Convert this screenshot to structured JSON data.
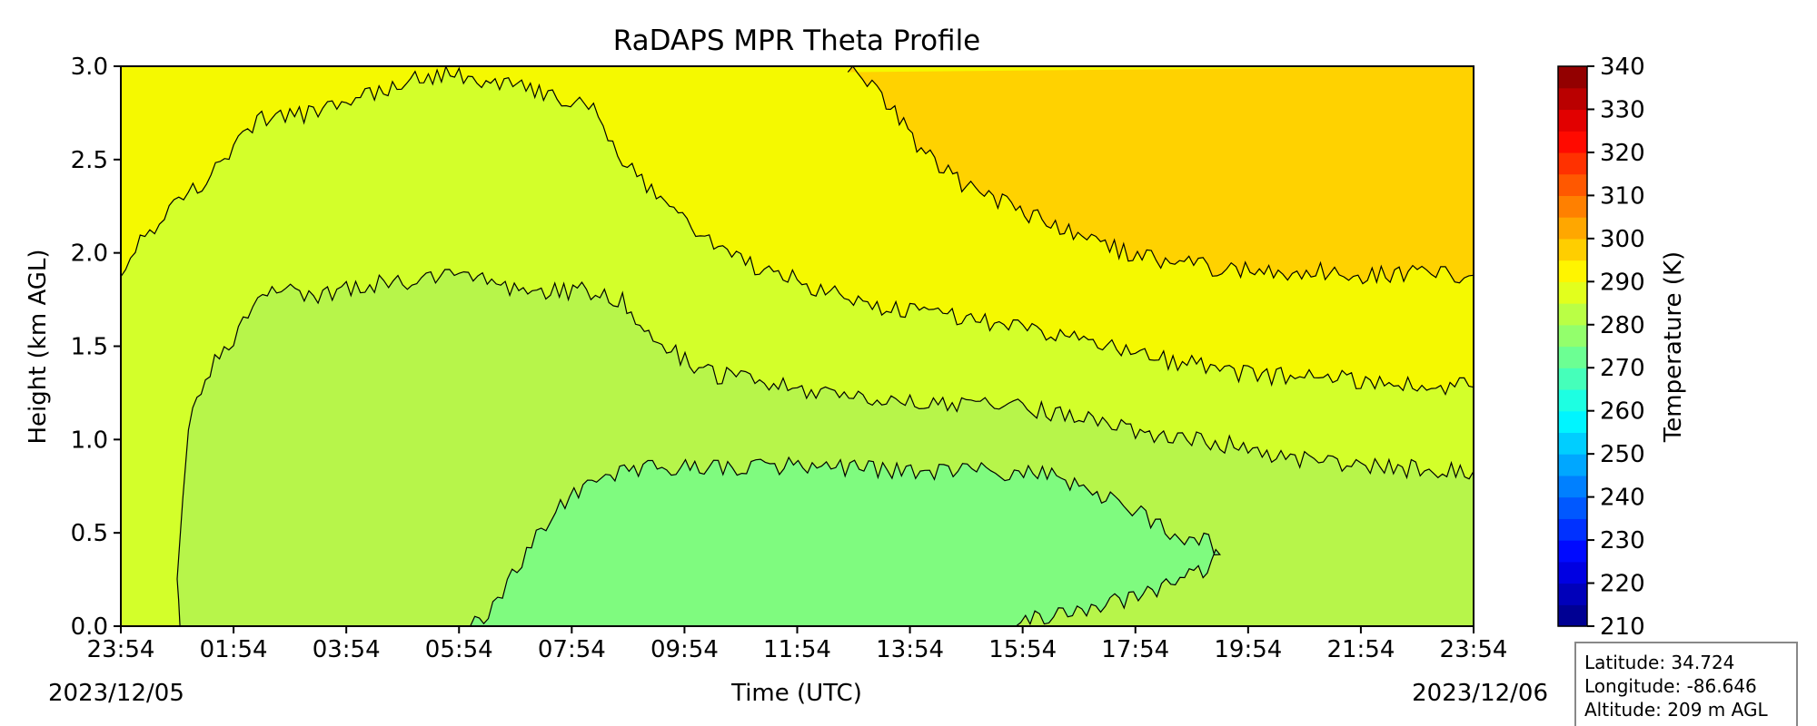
{
  "chart_data": {
    "type": "heatmap",
    "subtype": "filled-contour",
    "title": "RaDAPS MPR Theta Profile",
    "xlabel": "Time (UTC)",
    "ylabel": "Height (km AGL)",
    "x_tick_labels": [
      "23:54",
      "01:54",
      "03:54",
      "05:54",
      "07:54",
      "09:54",
      "11:54",
      "13:54",
      "15:54",
      "17:54",
      "19:54",
      "21:54",
      "23:54"
    ],
    "x_start_date": "2023/12/05",
    "x_end_date": "2023/12/06",
    "xlim_hours": [
      0,
      24
    ],
    "ylim": [
      0.0,
      3.0
    ],
    "y_ticks": [
      "0.0",
      "0.5",
      "1.0",
      "1.5",
      "2.0",
      "2.5",
      "3.0"
    ],
    "colorbar": {
      "label": "Temperature (K)",
      "range": [
        210,
        340
      ],
      "ticks": [
        "210",
        "220",
        "230",
        "240",
        "250",
        "260",
        "270",
        "280",
        "290",
        "300",
        "310",
        "320",
        "330",
        "340"
      ],
      "colormap": "jet",
      "levels": 26
    },
    "contour_levels_K": [
      275,
      280,
      285,
      290,
      295
    ],
    "band_colors": {
      "270-275": "#7ffb7f",
      "275-280": "#b7f54a",
      "280-285": "#d3ff2a",
      "285-290": "#f5f900",
      "290-295": "#ffd200"
    },
    "contour_isolines": [
      {
        "level": 295,
        "points": [
          [
            12.9,
            3.0
          ],
          [
            13.5,
            2.85
          ],
          [
            14.2,
            2.55
          ],
          [
            15.0,
            2.35
          ],
          [
            15.8,
            2.25
          ],
          [
            16.5,
            2.15
          ],
          [
            17.3,
            2.05
          ],
          [
            18.2,
            1.97
          ],
          [
            19.2,
            1.93
          ],
          [
            20.2,
            1.9
          ],
          [
            21.2,
            1.9
          ],
          [
            22.2,
            1.88
          ],
          [
            23.0,
            1.9
          ],
          [
            24.0,
            1.88
          ]
        ]
      },
      {
        "level": 290,
        "points": [
          [
            0.0,
            1.92
          ],
          [
            0.6,
            2.15
          ],
          [
            1.2,
            2.3
          ],
          [
            2.0,
            2.55
          ],
          [
            2.5,
            2.72
          ],
          [
            3.5,
            2.75
          ],
          [
            4.5,
            2.85
          ],
          [
            5.3,
            2.95
          ],
          [
            6.0,
            2.95
          ],
          [
            6.8,
            2.9
          ],
          [
            7.5,
            2.85
          ],
          [
            8.3,
            2.8
          ],
          [
            8.9,
            2.5
          ],
          [
            9.5,
            2.3
          ],
          [
            10.2,
            2.1
          ],
          [
            11.0,
            1.95
          ],
          [
            12.0,
            1.85
          ],
          [
            13.0,
            1.75
          ],
          [
            14.0,
            1.68
          ],
          [
            15.0,
            1.65
          ],
          [
            16.0,
            1.6
          ],
          [
            17.0,
            1.55
          ],
          [
            18.0,
            1.45
          ],
          [
            19.0,
            1.4
          ],
          [
            20.0,
            1.35
          ],
          [
            21.0,
            1.33
          ],
          [
            22.0,
            1.32
          ],
          [
            23.0,
            1.3
          ],
          [
            24.0,
            1.28
          ]
        ]
      },
      {
        "level": 285,
        "points": [
          [
            1.05,
            0.0
          ],
          [
            1.0,
            0.3
          ],
          [
            1.2,
            1.1
          ],
          [
            1.5,
            1.35
          ],
          [
            2.0,
            1.55
          ],
          [
            2.6,
            1.8
          ],
          [
            3.5,
            1.78
          ],
          [
            4.5,
            1.83
          ],
          [
            5.5,
            1.87
          ],
          [
            6.5,
            1.85
          ],
          [
            7.3,
            1.78
          ],
          [
            8.1,
            1.8
          ],
          [
            8.9,
            1.75
          ],
          [
            9.6,
            1.5
          ],
          [
            10.5,
            1.35
          ],
          [
            11.5,
            1.3
          ],
          [
            12.5,
            1.25
          ],
          [
            13.5,
            1.2
          ],
          [
            14.5,
            1.2
          ],
          [
            15.5,
            1.18
          ],
          [
            16.5,
            1.15
          ],
          [
            17.5,
            1.08
          ],
          [
            18.5,
            1.02
          ],
          [
            19.5,
            0.98
          ],
          [
            20.5,
            0.92
          ],
          [
            21.5,
            0.87
          ],
          [
            22.5,
            0.85
          ],
          [
            24.0,
            0.83
          ]
        ]
      },
      {
        "level": 280,
        "points": [
          [
            6.2,
            0.0
          ],
          [
            6.6,
            0.1
          ],
          [
            7.2,
            0.4
          ],
          [
            7.8,
            0.65
          ],
          [
            8.6,
            0.82
          ],
          [
            9.6,
            0.85
          ],
          [
            10.6,
            0.85
          ],
          [
            11.6,
            0.86
          ],
          [
            12.6,
            0.85
          ],
          [
            13.6,
            0.83
          ],
          [
            14.6,
            0.82
          ],
          [
            15.6,
            0.83
          ],
          [
            16.6,
            0.8
          ],
          [
            17.4,
            0.7
          ],
          [
            18.1,
            0.6
          ],
          [
            18.7,
            0.5
          ],
          [
            19.3,
            0.45
          ],
          [
            19.5,
            0.4
          ],
          [
            19.2,
            0.3
          ],
          [
            18.3,
            0.18
          ],
          [
            17.3,
            0.1
          ],
          [
            16.3,
            0.04
          ],
          [
            15.8,
            0.0
          ]
        ]
      }
    ]
  },
  "info_box": {
    "latitude": "Latitude: 34.724",
    "longitude": "Longitude: -86.646",
    "altitude": "Altitude: 209 m AGL"
  }
}
